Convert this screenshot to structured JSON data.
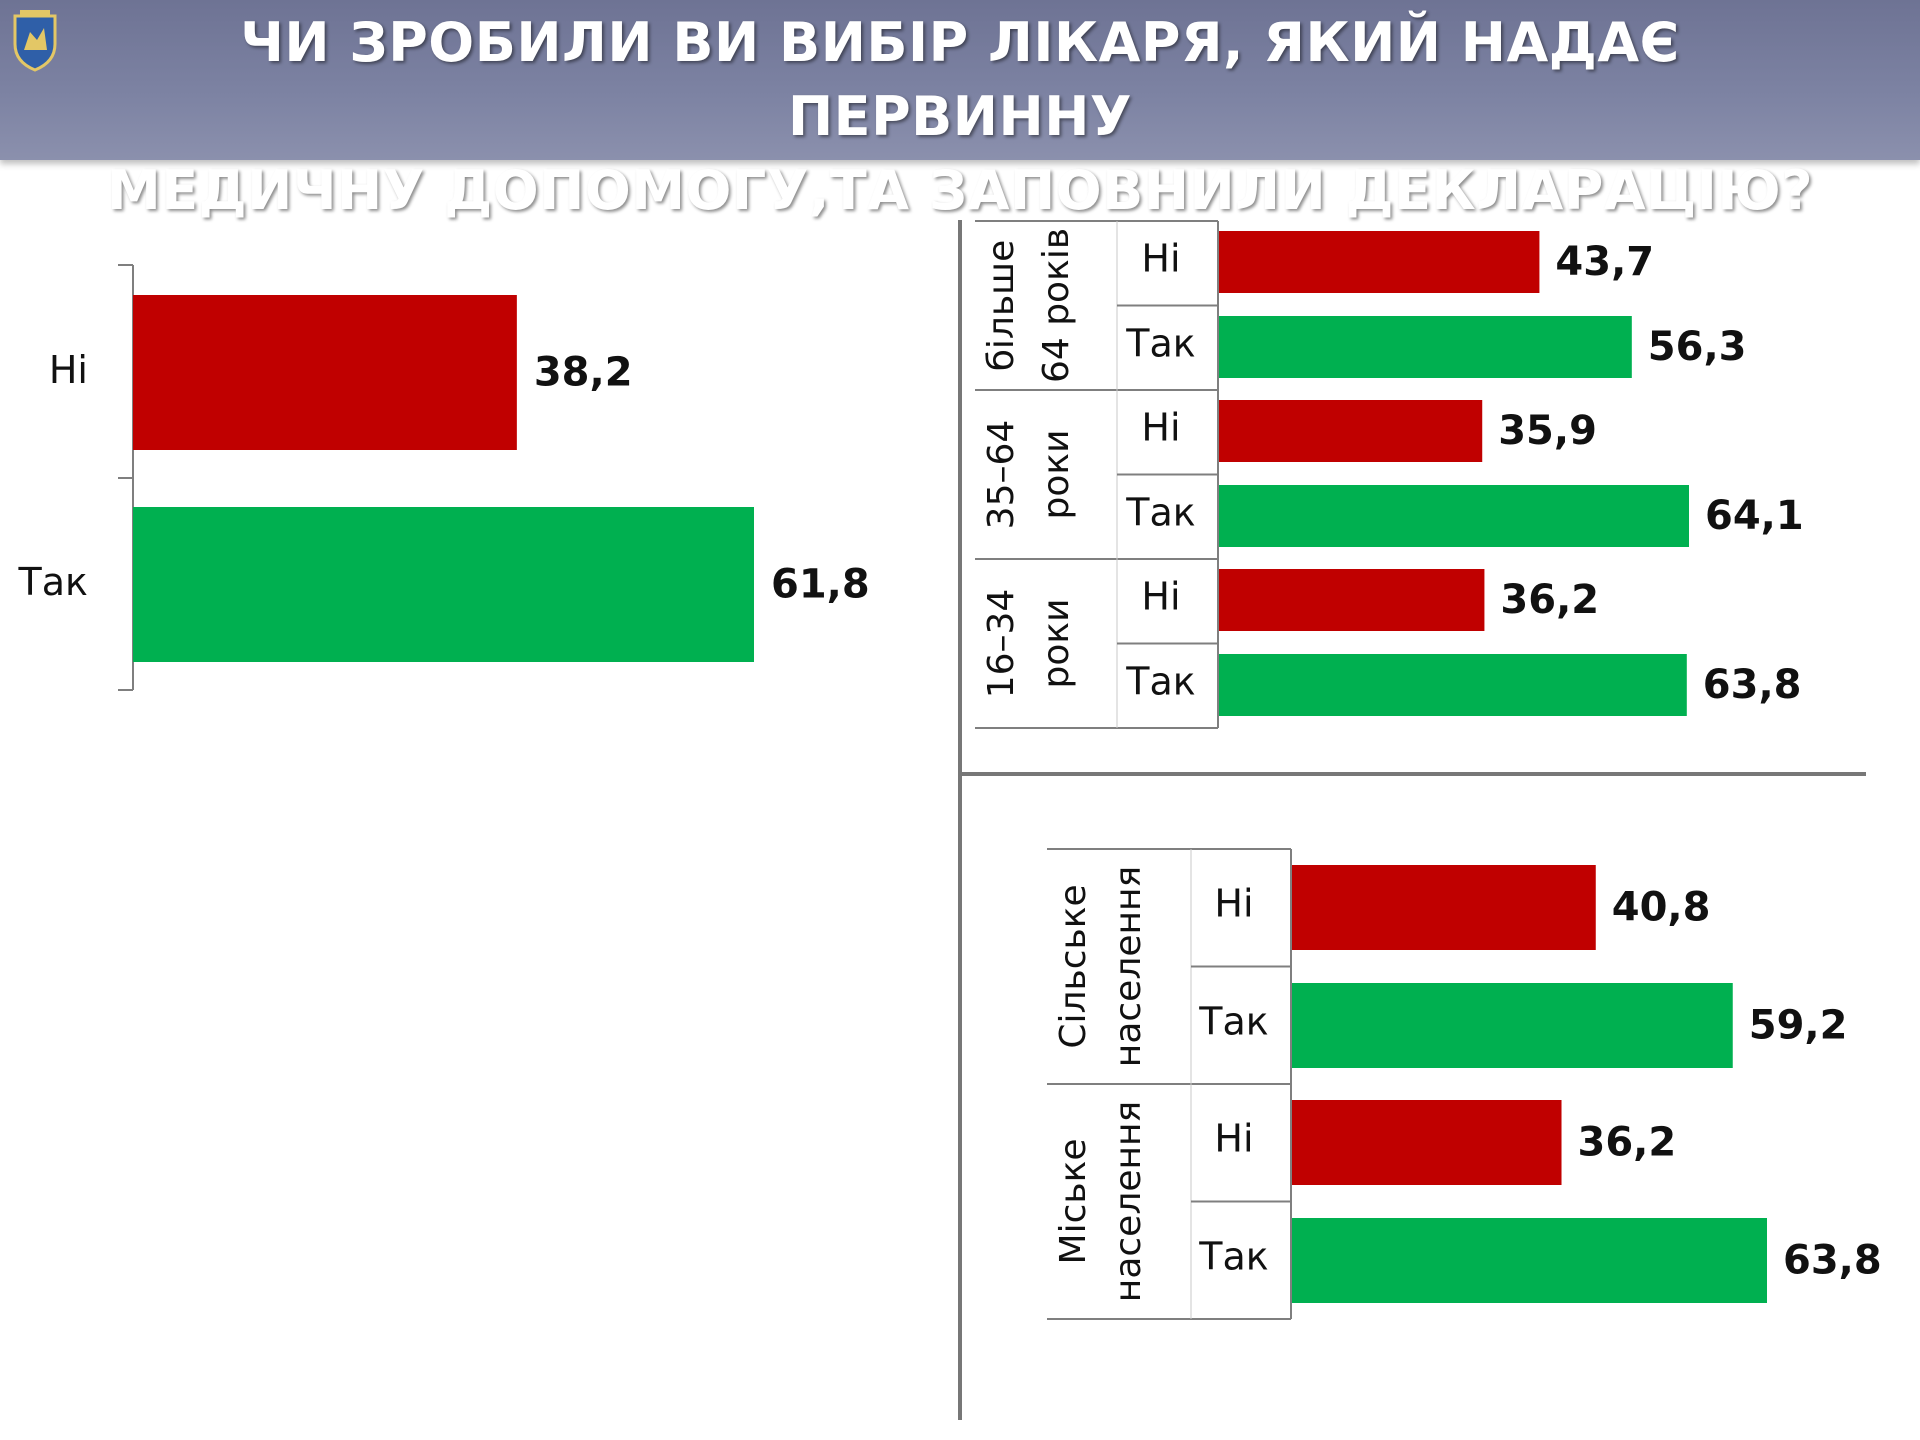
{
  "header": {
    "title_line1": "ЧИ ЗРОБИЛИ ВИ ВИБІР ЛІКАРЯ, ЯКИЙ НАДАЄ ПЕРВИННУ",
    "title_line2": "МЕДИЧНУ ДОПОМОГУ,ТА ЗАПОВНИЛИ ДЕКЛАРАЦІЮ?",
    "logo_icon": "coat-of-arms-icon"
  },
  "colors": {
    "no": "#c00000",
    "yes": "#00b050",
    "header": "#7d83a3"
  },
  "chart_data": [
    {
      "type": "bar",
      "orientation": "horizontal",
      "categories": [
        "Ні",
        "Так"
      ],
      "values": [
        38.2,
        61.8
      ],
      "value_labels": [
        "38,2",
        "61,8"
      ],
      "title": "",
      "xlabel": "",
      "ylabel": ""
    },
    {
      "type": "bar",
      "orientation": "horizontal",
      "groups": [
        {
          "label": [
            "більше",
            "64 років"
          ],
          "categories": [
            "Ні",
            "Так"
          ],
          "values": [
            43.7,
            56.3
          ],
          "value_labels": [
            "43,7",
            "56,3"
          ]
        },
        {
          "label": [
            "35–64",
            "роки"
          ],
          "categories": [
            "Ні",
            "Так"
          ],
          "values": [
            35.9,
            64.1
          ],
          "value_labels": [
            "35,9",
            "64,1"
          ]
        },
        {
          "label": [
            "16–34",
            "роки"
          ],
          "categories": [
            "Ні",
            "Так"
          ],
          "values": [
            36.2,
            63.8
          ],
          "value_labels": [
            "36,2",
            "63,8"
          ]
        }
      ],
      "title": "",
      "xlabel": "",
      "ylabel": ""
    },
    {
      "type": "bar",
      "orientation": "horizontal",
      "groups": [
        {
          "label": [
            "Сільське",
            "населення"
          ],
          "categories": [
            "Ні",
            "Так"
          ],
          "values": [
            40.8,
            59.2
          ],
          "value_labels": [
            "40,8",
            "59,2"
          ]
        },
        {
          "label": [
            "Міське",
            "населення"
          ],
          "categories": [
            "Ні",
            "Так"
          ],
          "values": [
            36.2,
            63.8
          ],
          "value_labels": [
            "36,2",
            "63,8"
          ]
        }
      ],
      "title": "",
      "xlabel": "",
      "ylabel": ""
    }
  ]
}
